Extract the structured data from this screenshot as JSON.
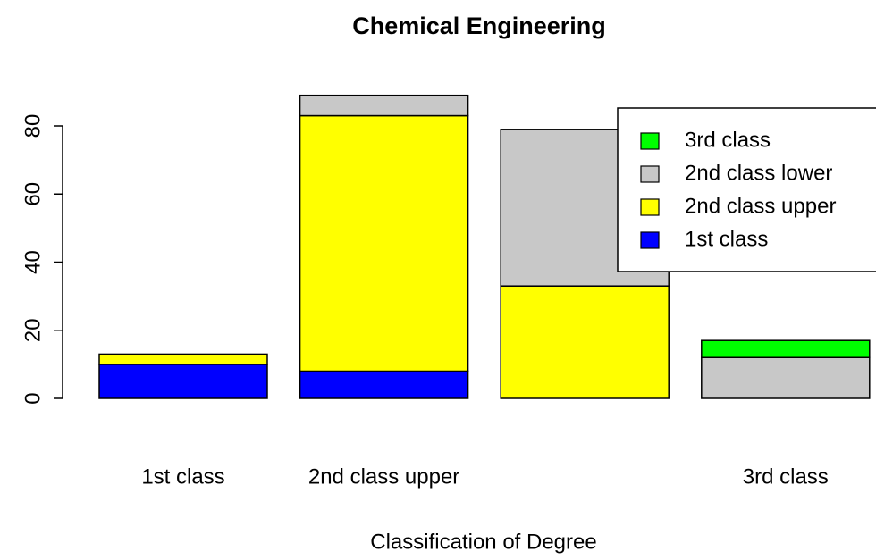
{
  "chart_data": {
    "type": "stacked_bar",
    "title": "Chemical Engineering",
    "x_label": "Classification of Degree",
    "categories": [
      "1st class",
      "2nd class upper",
      null,
      "3rd class"
    ],
    "series": [
      {
        "name": "1st class",
        "color": "#0000ff",
        "values": [
          10,
          8,
          0,
          0
        ]
      },
      {
        "name": "2nd class upper",
        "color": "#ffff00",
        "values": [
          3,
          75,
          33,
          0
        ]
      },
      {
        "name": "2nd class lower",
        "color": "#c8c8c8",
        "values": [
          0,
          6,
          46,
          12
        ]
      },
      {
        "name": "3rd class",
        "color": "#00ff00",
        "values": [
          0,
          0,
          0,
          5
        ]
      }
    ],
    "ylim": [
      0,
      92
    ],
    "yticks": [
      0,
      20,
      40,
      60,
      80
    ],
    "legend": "topright"
  }
}
